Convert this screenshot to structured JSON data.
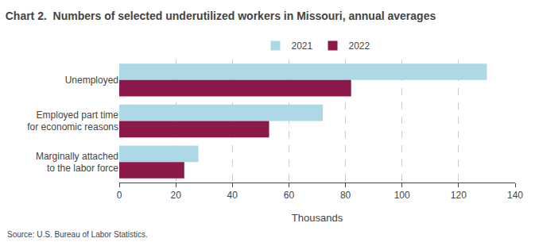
{
  "chart_data": {
    "type": "bar",
    "orientation": "horizontal",
    "title": "Chart 2.  Numbers of selected underutilized workers in Missouri, annual averages",
    "categories": [
      "Unemployed",
      "Employed part time\nfor economic reasons",
      "Marginally attached\nto the labor force"
    ],
    "series": [
      {
        "name": "2021",
        "color": "#add8e6",
        "values": [
          130,
          72,
          28
        ]
      },
      {
        "name": "2022",
        "color": "#8b1a4a",
        "values": [
          82,
          53,
          23
        ]
      }
    ],
    "xlabel": "Thousands",
    "xlim": [
      0,
      140
    ],
    "xticks": [
      0,
      20,
      40,
      60,
      80,
      100,
      120,
      140
    ],
    "grid": true,
    "legend": "top",
    "source": "Source: U.S. Bureau of Labor Statistics."
  }
}
